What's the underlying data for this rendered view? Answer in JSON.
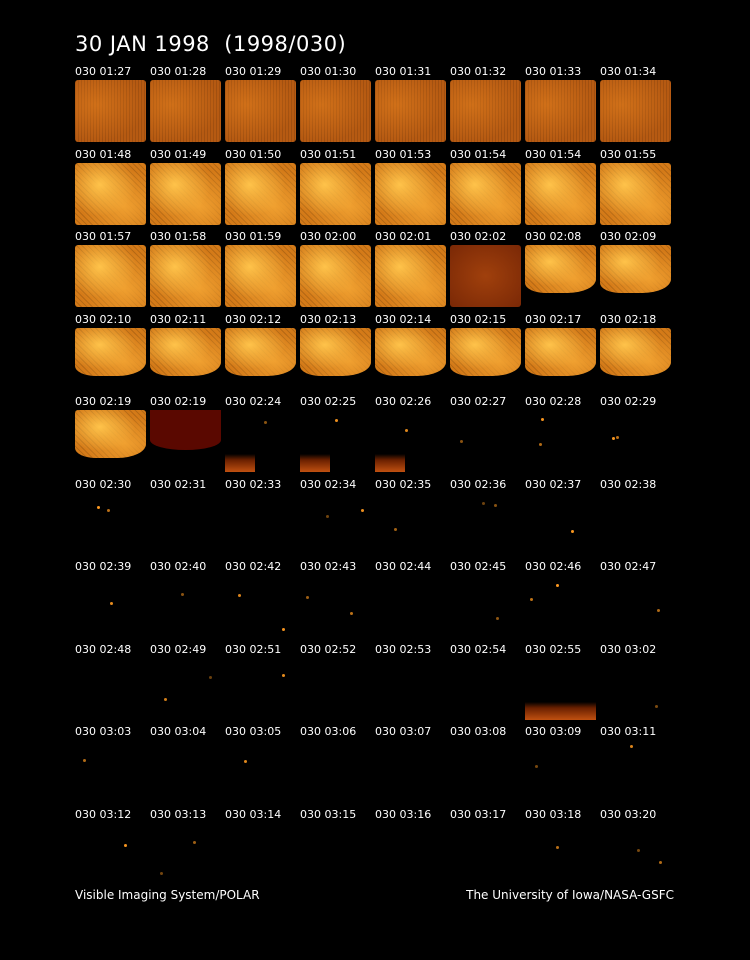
{
  "title": "30 JAN 1998  (1998/030)",
  "frames": [
    [
      "030 01:27",
      "030 01:28",
      "030 01:29",
      "030 01:30",
      "030 01:31",
      "030 01:32",
      "030 01:33",
      "030 01:34"
    ],
    [
      "030 01:48",
      "030 01:49",
      "030 01:50",
      "030 01:51",
      "030 01:53",
      "030 01:54",
      "030 01:54",
      "030 01:55"
    ],
    [
      "030 01:57",
      "030 01:58",
      "030 01:59",
      "030 02:00",
      "030 02:01",
      "030 02:02",
      "030 02:08",
      "030 02:09"
    ],
    [
      "030 02:10",
      "030 02:11",
      "030 02:12",
      "030 02:13",
      "030 02:14",
      "030 02:15",
      "030 02:17",
      "030 02:18"
    ],
    [
      "030 02:19",
      "030 02:19",
      "030 02:24",
      "030 02:25",
      "030 02:26",
      "030 02:27",
      "030 02:28",
      "030 02:29"
    ],
    [
      "030 02:30",
      "030 02:31",
      "030 02:33",
      "030 02:34",
      "030 02:35",
      "030 02:36",
      "030 02:37",
      "030 02:38"
    ],
    [
      "030 02:39",
      "030 02:40",
      "030 02:42",
      "030 02:43",
      "030 02:44",
      "030 02:45",
      "030 02:46",
      "030 02:47"
    ],
    [
      "030 02:48",
      "030 02:49",
      "030 02:51",
      "030 02:52",
      "030 02:53",
      "030 02:54",
      "030 02:55",
      "030 03:02"
    ],
    [
      "030 03:03",
      "030 03:04",
      "030 03:05",
      "030 03:06",
      "030 03:07",
      "030 03:08",
      "030 03:09",
      "030 03:11"
    ],
    [
      "030 03:12",
      "030 03:13",
      "030 03:14",
      "030 03:15",
      "030 03:16",
      "030 03:17",
      "030 03:18",
      "030 03:20"
    ]
  ],
  "footer": {
    "left": "Visible Imaging System/POLAR",
    "right": "The University of Iowa/NASA-GSFC"
  }
}
